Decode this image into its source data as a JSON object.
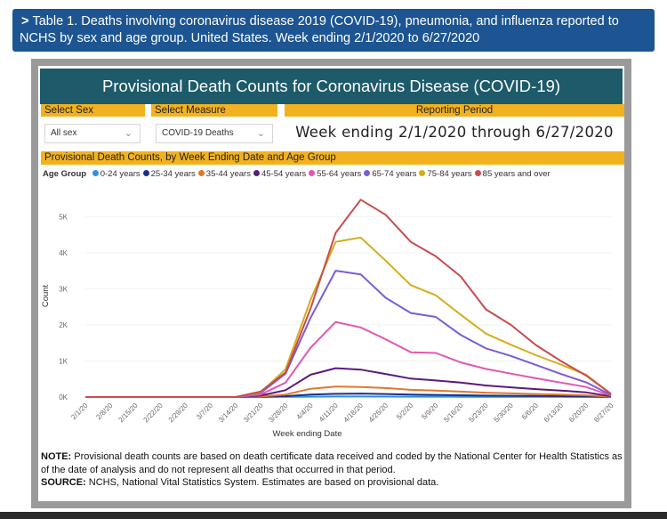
{
  "header": {
    "chevron": ">",
    "text": "Table 1. Deaths involving coronavirus disease 2019 (COVID-19), pneumonia, and influenza reported to NCHS by sex and age group. United States. Week ending 2/1/2020 to 6/27/2020"
  },
  "dashboard": {
    "title": "Provisional Death Counts for Coronavirus Disease (COVID-19)",
    "select_sex_label": "Select Sex",
    "select_sex_value": "All sex",
    "select_measure_label": "Select Measure",
    "select_measure_value": "COVID-19 Deaths",
    "period_label": "Reporting Period",
    "period_value": "Week ending 2/1/2020 through 6/27/2020",
    "chart_section_label": "Provisional Death Counts, by Week Ending Date and Age Group",
    "legend_title": "Age Group"
  },
  "note": {
    "note_label": "NOTE:",
    "note_text": " Provisional death counts are based on death certificate data received and coded by the National Center for Health Statistics as of the date of analysis and do not represent all deaths that occurred in that period.",
    "source_label": "SOURCE:",
    "source_text": " NCHS, National Vital Statistics System. Estimates are based on provisional data."
  },
  "chart_data": {
    "type": "line",
    "xlabel": "Week ending Date",
    "ylabel": "Count",
    "ylim": [
      0,
      5600
    ],
    "yticks": [
      0,
      1000,
      2000,
      3000,
      4000,
      5000
    ],
    "ytick_labels": [
      "0K",
      "1K",
      "2K",
      "3K",
      "4K",
      "5K"
    ],
    "legend_position": "top-left",
    "categories": [
      "2/1/20",
      "2/8/20",
      "2/15/20",
      "2/22/20",
      "2/29/20",
      "3/7/20",
      "3/14/20",
      "3/21/20",
      "3/28/20",
      "4/4/20",
      "4/11/20",
      "4/18/20",
      "4/25/20",
      "5/2/20",
      "5/9/20",
      "5/16/20",
      "5/23/20",
      "5/30/20",
      "6/6/20",
      "6/13/20",
      "6/20/20",
      "6/27/20"
    ],
    "series": [
      {
        "name": "0-24 years",
        "color": "#2f8fe0",
        "values": [
          0,
          0,
          0,
          0,
          0,
          0,
          0,
          2,
          5,
          10,
          15,
          15,
          12,
          10,
          9,
          8,
          7,
          6,
          5,
          4,
          3,
          1
        ]
      },
      {
        "name": "25-34 years",
        "color": "#1a2f8a",
        "values": [
          0,
          0,
          0,
          0,
          0,
          0,
          0,
          5,
          25,
          70,
          90,
          95,
          85,
          70,
          60,
          50,
          40,
          35,
          30,
          25,
          18,
          5
        ]
      },
      {
        "name": "35-44 years",
        "color": "#e0782c",
        "values": [
          0,
          0,
          0,
          0,
          0,
          0,
          0,
          15,
          70,
          230,
          290,
          280,
          250,
          200,
          180,
          150,
          120,
          100,
          85,
          70,
          50,
          10
        ]
      },
      {
        "name": "45-54 years",
        "color": "#5c1a7a",
        "values": [
          0,
          0,
          0,
          0,
          0,
          0,
          0,
          40,
          190,
          620,
          800,
          760,
          640,
          510,
          460,
          400,
          320,
          270,
          220,
          180,
          130,
          20
        ]
      },
      {
        "name": "55-64 years",
        "color": "#e157b5",
        "values": [
          0,
          0,
          0,
          0,
          0,
          0,
          0,
          70,
          400,
          1370,
          2080,
          1930,
          1600,
          1240,
          1220,
          960,
          780,
          650,
          520,
          400,
          280,
          40
        ]
      },
      {
        "name": "65-74 years",
        "color": "#7a5cd6",
        "values": [
          0,
          0,
          0,
          0,
          0,
          0,
          0,
          110,
          650,
          2200,
          3500,
          3400,
          2750,
          2330,
          2220,
          1720,
          1350,
          1140,
          890,
          640,
          410,
          60
        ]
      },
      {
        "name": "75-84 years",
        "color": "#d4ad1c",
        "values": [
          0,
          0,
          0,
          0,
          0,
          0,
          0,
          130,
          770,
          2700,
          4300,
          4420,
          3780,
          3100,
          2820,
          2280,
          1760,
          1450,
          1160,
          900,
          620,
          90
        ]
      },
      {
        "name": "85 years and over",
        "color": "#c94c4c",
        "values": [
          0,
          0,
          0,
          0,
          0,
          0,
          0,
          150,
          680,
          2460,
          4550,
          5470,
          5050,
          4300,
          3900,
          3340,
          2430,
          2000,
          1440,
          1000,
          600,
          90
        ]
      }
    ]
  }
}
